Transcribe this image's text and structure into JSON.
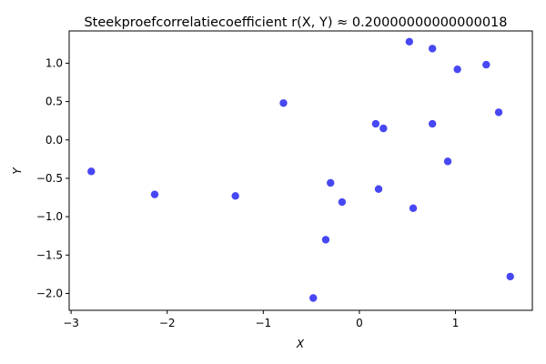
{
  "chart_data": {
    "type": "scatter",
    "title": "Steekproefcorrelatiecoefficient r(X, Y) ≈ 0.20000000000000018",
    "xlabel": "X",
    "ylabel": "Y",
    "xlim": [
      -3.02,
      1.8
    ],
    "ylim": [
      -2.22,
      1.42
    ],
    "xticks": [
      -3,
      -2,
      -1,
      0,
      1
    ],
    "xtick_labels": [
      "−3",
      "−2",
      "−1",
      "0",
      "1"
    ],
    "yticks": [
      -2.0,
      -1.5,
      -1.0,
      -0.5,
      0.0,
      0.5,
      1.0
    ],
    "ytick_labels": [
      "−2.0",
      "−1.5",
      "−1.0",
      "−0.5",
      "0.0",
      "0.5",
      "1.0"
    ],
    "grid": false,
    "color": "#0000ee",
    "points": [
      {
        "x": -2.79,
        "y": -0.41
      },
      {
        "x": -2.13,
        "y": -0.71
      },
      {
        "x": -1.29,
        "y": -0.73
      },
      {
        "x": -0.79,
        "y": 0.48
      },
      {
        "x": -0.48,
        "y": -2.06
      },
      {
        "x": -0.35,
        "y": -1.3
      },
      {
        "x": -0.3,
        "y": -0.56
      },
      {
        "x": -0.18,
        "y": -0.81
      },
      {
        "x": 0.17,
        "y": 0.21
      },
      {
        "x": 0.2,
        "y": -0.64
      },
      {
        "x": 0.25,
        "y": 0.15
      },
      {
        "x": 0.52,
        "y": 1.28
      },
      {
        "x": 0.56,
        "y": -0.89
      },
      {
        "x": 0.76,
        "y": 1.19
      },
      {
        "x": 0.76,
        "y": 0.21
      },
      {
        "x": 0.92,
        "y": -0.28
      },
      {
        "x": 1.02,
        "y": 0.92
      },
      {
        "x": 1.32,
        "y": 0.98
      },
      {
        "x": 1.45,
        "y": 0.36
      },
      {
        "x": 1.57,
        "y": -1.78
      }
    ]
  }
}
